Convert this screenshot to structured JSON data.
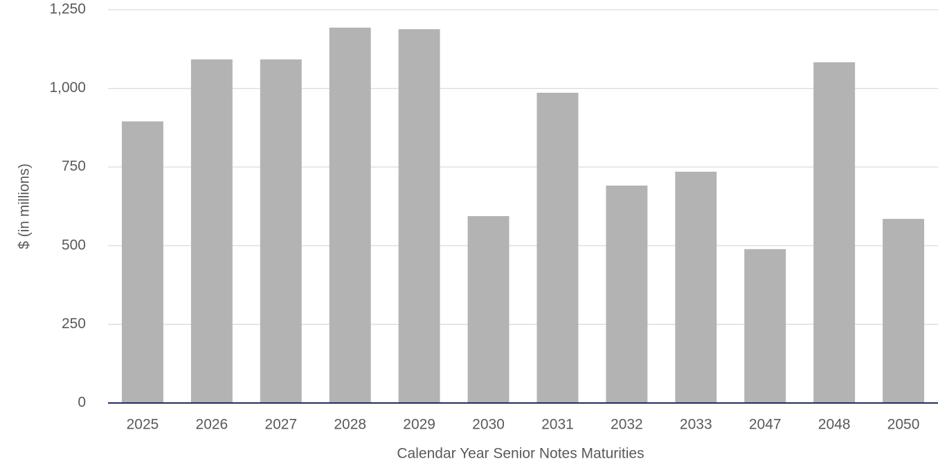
{
  "chart_data": {
    "type": "bar",
    "x_label": "Calendar Year Senior Notes Maturities",
    "y_label": "$ (in millions)",
    "categories": [
      "2025",
      "2026",
      "2027",
      "2028",
      "2029",
      "2030",
      "2031",
      "2032",
      "2033",
      "2047",
      "2048",
      "2050"
    ],
    "values": [
      895,
      1092,
      1092,
      1193,
      1188,
      594,
      986,
      691,
      735,
      489,
      1083,
      585
    ],
    "color": "#b3b3b3",
    "axis_color": "#1f2d5c",
    "ylim": [
      0,
      1250
    ],
    "yticks": [
      0,
      250,
      500,
      750,
      {
        "value": 1000,
        "label": "1,000"
      },
      {
        "value": 1250,
        "label": "1,250"
      }
    ],
    "grid": true
  }
}
